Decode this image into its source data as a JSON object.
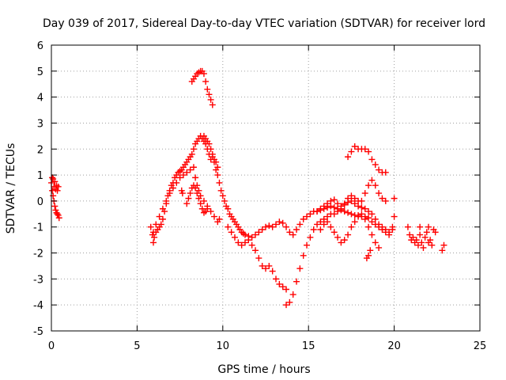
{
  "chart_data": {
    "type": "scatter",
    "title": "Day 039 of 2017, Sidereal Day-to-day VTEC variation (SDTVAR) for receiver lord",
    "xlabel": "GPS time / hours",
    "ylabel": "SDTVAR / TECUs",
    "xlim": [
      0,
      25
    ],
    "ylim": [
      -5,
      6
    ],
    "xticks": [
      "0",
      "5",
      "10",
      "15",
      "20",
      "25"
    ],
    "yticks": [
      "-5",
      "-4",
      "-3",
      "-2",
      "-1",
      "0",
      "1",
      "2",
      "3",
      "4",
      "5",
      "6"
    ],
    "grid": true,
    "marker": "+",
    "color": "#ff0000",
    "series": [
      {
        "name": "sdtvar",
        "points": [
          [
            0.0,
            0.7
          ],
          [
            0.05,
            0.9
          ],
          [
            0.1,
            0.85
          ],
          [
            0.15,
            0.55
          ],
          [
            0.2,
            0.75
          ],
          [
            0.25,
            0.45
          ],
          [
            0.3,
            0.6
          ],
          [
            0.35,
            0.4
          ],
          [
            0.4,
            0.55
          ],
          [
            0.05,
            0.4
          ],
          [
            0.1,
            0.2
          ],
          [
            0.15,
            0.0
          ],
          [
            0.2,
            -0.2
          ],
          [
            0.25,
            -0.35
          ],
          [
            0.3,
            -0.45
          ],
          [
            0.35,
            -0.5
          ],
          [
            0.4,
            -0.55
          ],
          [
            0.45,
            -0.65
          ],
          [
            5.8,
            -1.0
          ],
          [
            5.9,
            -1.3
          ],
          [
            5.95,
            -1.6
          ],
          [
            6.0,
            -1.4
          ],
          [
            6.1,
            -1.2
          ],
          [
            6.2,
            -1.1
          ],
          [
            6.3,
            -1.0
          ],
          [
            6.4,
            -0.9
          ],
          [
            6.5,
            -0.7
          ],
          [
            6.6,
            -0.4
          ],
          [
            6.7,
            -0.1
          ],
          [
            6.8,
            0.2
          ],
          [
            6.9,
            0.4
          ],
          [
            7.0,
            0.6
          ],
          [
            7.1,
            0.7
          ],
          [
            7.2,
            0.9
          ],
          [
            7.3,
            1.0
          ],
          [
            7.4,
            1.1
          ],
          [
            7.5,
            1.15
          ],
          [
            7.6,
            1.2
          ],
          [
            7.7,
            1.3
          ],
          [
            7.8,
            1.4
          ],
          [
            7.9,
            1.5
          ],
          [
            8.0,
            1.6
          ],
          [
            8.1,
            1.7
          ],
          [
            8.2,
            1.8
          ],
          [
            8.3,
            2.0
          ],
          [
            8.4,
            2.2
          ],
          [
            8.5,
            2.3
          ],
          [
            8.6,
            2.4
          ],
          [
            8.7,
            2.5
          ],
          [
            8.8,
            2.4
          ],
          [
            8.9,
            2.3
          ],
          [
            9.0,
            2.2
          ],
          [
            9.1,
            2.0
          ],
          [
            9.2,
            1.8
          ],
          [
            9.3,
            1.6
          ],
          [
            9.4,
            1.7
          ],
          [
            9.5,
            1.6
          ],
          [
            9.6,
            1.5
          ],
          [
            9.7,
            1.3
          ],
          [
            5.95,
            -1.2
          ],
          [
            6.1,
            -0.9
          ],
          [
            6.3,
            -0.6
          ],
          [
            6.5,
            -0.3
          ],
          [
            6.7,
            0.0
          ],
          [
            6.9,
            0.3
          ],
          [
            7.1,
            0.5
          ],
          [
            7.3,
            0.7
          ],
          [
            7.5,
            0.9
          ],
          [
            7.7,
            1.0
          ],
          [
            7.9,
            1.1
          ],
          [
            8.1,
            1.2
          ],
          [
            8.3,
            1.3
          ],
          [
            8.4,
            0.9
          ],
          [
            8.5,
            0.6
          ],
          [
            8.6,
            0.4
          ],
          [
            8.7,
            0.2
          ],
          [
            8.9,
            0.0
          ],
          [
            9.1,
            -0.2
          ],
          [
            9.3,
            -0.4
          ],
          [
            9.5,
            -0.6
          ],
          [
            9.7,
            -0.8
          ],
          [
            9.8,
            -0.7
          ],
          [
            7.9,
            -0.1
          ],
          [
            8.0,
            0.1
          ],
          [
            8.1,
            0.3
          ],
          [
            8.2,
            0.5
          ],
          [
            8.3,
            0.6
          ],
          [
            8.4,
            0.5
          ],
          [
            8.5,
            0.3
          ],
          [
            8.6,
            0.1
          ],
          [
            8.7,
            -0.1
          ],
          [
            8.8,
            -0.3
          ],
          [
            8.9,
            -0.45
          ],
          [
            9.0,
            -0.4
          ],
          [
            9.1,
            -0.3
          ],
          [
            7.6,
            0.4
          ],
          [
            7.65,
            0.3
          ],
          [
            8.2,
            4.6
          ],
          [
            8.3,
            4.7
          ],
          [
            8.4,
            4.8
          ],
          [
            8.5,
            4.9
          ],
          [
            8.6,
            4.95
          ],
          [
            8.7,
            5.0
          ],
          [
            8.8,
            5.0
          ],
          [
            8.9,
            4.9
          ],
          [
            9.0,
            4.6
          ],
          [
            9.1,
            4.3
          ],
          [
            9.2,
            4.1
          ],
          [
            9.3,
            3.9
          ],
          [
            9.4,
            3.7
          ],
          [
            8.9,
            2.5
          ],
          [
            9.0,
            2.4
          ],
          [
            9.1,
            2.3
          ],
          [
            9.2,
            2.2
          ],
          [
            9.3,
            2.0
          ],
          [
            9.4,
            1.8
          ],
          [
            9.5,
            1.5
          ],
          [
            9.6,
            1.2
          ],
          [
            9.7,
            1.0
          ],
          [
            9.8,
            0.7
          ],
          [
            9.9,
            0.4
          ],
          [
            10.0,
            0.2
          ],
          [
            10.1,
            0.0
          ],
          [
            10.2,
            -0.2
          ],
          [
            10.3,
            -0.3
          ],
          [
            10.4,
            -0.5
          ],
          [
            10.5,
            -0.6
          ],
          [
            10.6,
            -0.7
          ],
          [
            10.7,
            -0.8
          ],
          [
            10.8,
            -0.9
          ],
          [
            10.9,
            -1.0
          ],
          [
            11.0,
            -1.1
          ],
          [
            11.1,
            -1.2
          ],
          [
            11.2,
            -1.25
          ],
          [
            11.3,
            -1.3
          ],
          [
            11.5,
            -1.35
          ],
          [
            11.7,
            -1.4
          ],
          [
            11.9,
            -1.3
          ],
          [
            12.1,
            -1.2
          ],
          [
            12.3,
            -1.1
          ],
          [
            12.5,
            -1.0
          ],
          [
            12.7,
            -0.95
          ],
          [
            12.9,
            -1.0
          ],
          [
            13.1,
            -0.9
          ],
          [
            13.3,
            -0.8
          ],
          [
            13.5,
            -0.85
          ],
          [
            13.7,
            -1.0
          ],
          [
            13.9,
            -1.2
          ],
          [
            14.1,
            -1.3
          ],
          [
            14.3,
            -1.1
          ],
          [
            14.5,
            -0.9
          ],
          [
            14.7,
            -0.7
          ],
          [
            14.9,
            -0.6
          ],
          [
            15.1,
            -0.5
          ],
          [
            15.3,
            -0.4
          ],
          [
            15.5,
            -0.4
          ],
          [
            15.7,
            -0.35
          ],
          [
            15.9,
            -0.3
          ],
          [
            16.1,
            -0.25
          ],
          [
            16.3,
            -0.2
          ],
          [
            16.5,
            -0.25
          ],
          [
            16.7,
            -0.3
          ],
          [
            16.9,
            -0.35
          ],
          [
            17.1,
            -0.4
          ],
          [
            17.3,
            -0.45
          ],
          [
            17.5,
            -0.5
          ],
          [
            17.7,
            -0.55
          ],
          [
            17.9,
            -0.55
          ],
          [
            18.1,
            -0.6
          ],
          [
            18.3,
            -0.6
          ],
          [
            18.5,
            -0.65
          ],
          [
            18.7,
            -0.8
          ],
          [
            18.9,
            -0.9
          ],
          [
            19.1,
            -1.0
          ],
          [
            19.3,
            -1.1
          ],
          [
            19.5,
            -1.2
          ],
          [
            19.7,
            -1.3
          ],
          [
            19.9,
            -1.0
          ],
          [
            20.0,
            -0.6
          ],
          [
            10.3,
            -1.0
          ],
          [
            10.5,
            -1.2
          ],
          [
            10.7,
            -1.4
          ],
          [
            10.9,
            -1.6
          ],
          [
            11.1,
            -1.7
          ],
          [
            11.3,
            -1.6
          ],
          [
            11.5,
            -1.5
          ],
          [
            11.7,
            -1.7
          ],
          [
            11.9,
            -1.9
          ],
          [
            12.1,
            -2.2
          ],
          [
            12.3,
            -2.5
          ],
          [
            12.5,
            -2.6
          ],
          [
            12.7,
            -2.5
          ],
          [
            12.9,
            -2.7
          ],
          [
            13.1,
            -3.0
          ],
          [
            13.3,
            -3.2
          ],
          [
            13.5,
            -3.3
          ],
          [
            13.7,
            -3.4
          ],
          [
            13.7,
            -4.0
          ],
          [
            13.9,
            -3.9
          ],
          [
            14.1,
            -3.6
          ],
          [
            14.3,
            -3.1
          ],
          [
            14.5,
            -2.6
          ],
          [
            14.7,
            -2.1
          ],
          [
            14.9,
            -1.7
          ],
          [
            15.1,
            -1.4
          ],
          [
            15.3,
            -1.1
          ],
          [
            15.5,
            -0.9
          ],
          [
            15.7,
            -0.8
          ],
          [
            15.9,
            -0.7
          ],
          [
            16.1,
            -0.6
          ],
          [
            16.3,
            -0.5
          ],
          [
            16.5,
            -0.5
          ],
          [
            16.7,
            -0.4
          ],
          [
            16.9,
            -0.3
          ],
          [
            17.1,
            -0.1
          ],
          [
            17.3,
            0.1
          ],
          [
            17.5,
            0.2
          ],
          [
            17.7,
            0.1
          ],
          [
            17.9,
            0.0
          ],
          [
            18.1,
            0.0
          ],
          [
            18.3,
            0.3
          ],
          [
            18.5,
            0.6
          ],
          [
            18.7,
            0.8
          ],
          [
            18.9,
            0.6
          ],
          [
            19.1,
            0.3
          ],
          [
            19.3,
            0.1
          ],
          [
            19.5,
            0.0
          ],
          [
            15.5,
            -0.4
          ],
          [
            15.7,
            -0.3
          ],
          [
            15.9,
            -0.2
          ],
          [
            16.1,
            -0.1
          ],
          [
            16.3,
            0.0
          ],
          [
            16.5,
            0.05
          ],
          [
            16.7,
            -0.1
          ],
          [
            16.9,
            -0.2
          ],
          [
            17.1,
            -0.15
          ],
          [
            17.3,
            -0.05
          ],
          [
            17.5,
            0.0
          ],
          [
            17.7,
            -0.1
          ],
          [
            17.9,
            -0.2
          ],
          [
            18.1,
            -0.25
          ],
          [
            18.3,
            -0.3
          ],
          [
            18.5,
            -0.4
          ],
          [
            18.7,
            -0.5
          ],
          [
            18.9,
            -0.7
          ],
          [
            19.1,
            -0.9
          ],
          [
            19.3,
            -1.0
          ],
          [
            19.5,
            -1.1
          ],
          [
            19.7,
            -1.2
          ],
          [
            19.9,
            -1.1
          ],
          [
            15.7,
            -1.1
          ],
          [
            15.9,
            -0.9
          ],
          [
            16.1,
            -0.8
          ],
          [
            16.3,
            -1.0
          ],
          [
            16.5,
            -1.2
          ],
          [
            16.7,
            -1.4
          ],
          [
            16.9,
            -1.6
          ],
          [
            17.1,
            -1.5
          ],
          [
            17.3,
            -1.3
          ],
          [
            17.5,
            -1.0
          ],
          [
            17.7,
            -0.8
          ],
          [
            17.9,
            -0.6
          ],
          [
            18.1,
            -0.5
          ],
          [
            18.3,
            -0.7
          ],
          [
            18.5,
            -1.0
          ],
          [
            18.7,
            -1.3
          ],
          [
            18.9,
            -1.6
          ],
          [
            19.1,
            -1.8
          ],
          [
            18.6,
            -1.9
          ],
          [
            18.5,
            -2.1
          ],
          [
            18.4,
            -2.2
          ],
          [
            17.3,
            1.7
          ],
          [
            17.5,
            1.9
          ],
          [
            17.7,
            2.1
          ],
          [
            17.9,
            2.0
          ],
          [
            18.1,
            2.0
          ],
          [
            18.3,
            2.0
          ],
          [
            18.5,
            1.9
          ],
          [
            18.7,
            1.6
          ],
          [
            18.9,
            1.4
          ],
          [
            19.1,
            1.2
          ],
          [
            19.3,
            1.1
          ],
          [
            19.5,
            1.1
          ],
          [
            20.0,
            0.1
          ],
          [
            20.8,
            -1.0
          ],
          [
            20.9,
            -1.3
          ],
          [
            21.0,
            -1.5
          ],
          [
            21.1,
            -1.4
          ],
          [
            21.2,
            -1.6
          ],
          [
            21.3,
            -1.5
          ],
          [
            21.4,
            -1.7
          ],
          [
            21.5,
            -1.3
          ],
          [
            21.6,
            -1.6
          ],
          [
            21.7,
            -1.8
          ],
          [
            21.8,
            -1.4
          ],
          [
            21.9,
            -1.2
          ],
          [
            22.0,
            -1.6
          ],
          [
            22.1,
            -1.5
          ],
          [
            22.2,
            -1.7
          ],
          [
            22.3,
            -1.1
          ],
          [
            22.4,
            -1.2
          ],
          [
            21.5,
            -1.0
          ],
          [
            22.0,
            -1.0
          ],
          [
            22.8,
            -1.9
          ],
          [
            22.9,
            -1.7
          ]
        ]
      }
    ]
  }
}
